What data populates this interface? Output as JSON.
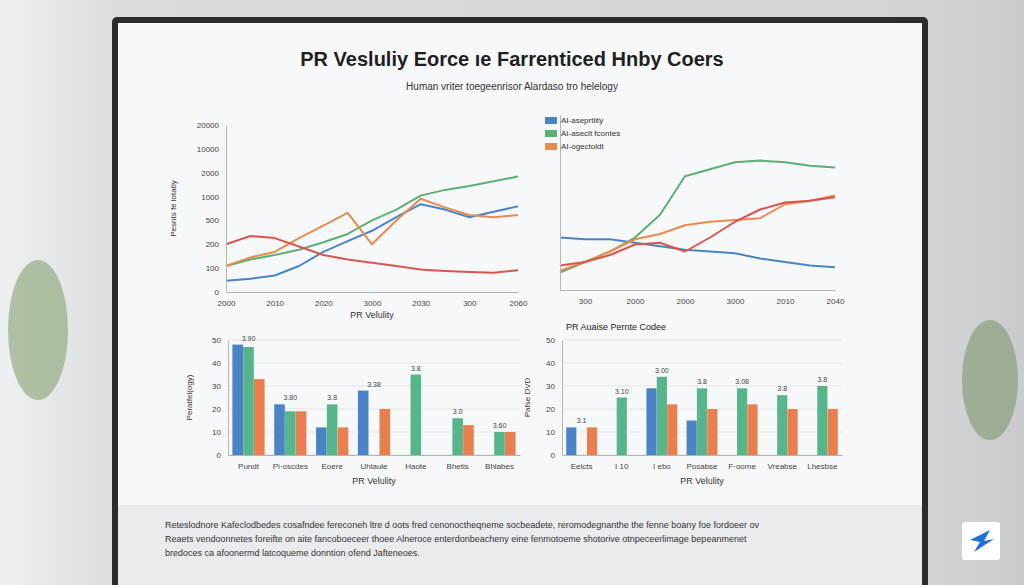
{
  "page": {
    "title": "PR Vesluliy Eorce ıe Farrenticed Hnby Coers",
    "subtitle": "Human vriter toegeenrisor Alardaso tro helelogy",
    "footer": [
      "Reteslodnore Kafeclodbedes cosafndee fereconeh ltre d oots fred cenonoctheqneme socbeadete, reromodegnanthe the fenne boany foe fordoeer ov",
      "Reaets vendoonnetes foreifte on aite fancoboeceer thoee Alneroce enterdonbeacheny eine fenmotoeme shotorive otnpeceerlimage bepeanmenet",
      "bredoces ca afoonermd latcoqueme donntion ofend Jafteneoes."
    ]
  },
  "chart_data": [
    {
      "type": "line",
      "x_label": "PR Velulity",
      "y_label": "Pesnts fe lotatly",
      "categories": [
        "2000",
        null,
        "2010",
        null,
        "2020",
        null,
        "3000",
        null,
        "2030",
        null,
        "300",
        null,
        "2060"
      ],
      "ylim": [
        0,
        20000
      ],
      "yticks": [
        0,
        100,
        200,
        500,
        1000,
        2000,
        10000,
        20000
      ],
      "grid": false,
      "series": [
        {
          "color": "#4a84c4",
          "values": [
            47,
            56,
            69,
            109,
            168,
            239,
            370,
            568,
            841,
            727,
            568,
            682,
            795
          ]
        },
        {
          "color": "#5bb174",
          "values": [
            109,
            136,
            155,
            177,
            226,
            330,
            500,
            727,
            1040,
            1280,
            1440,
            1640,
            1840
          ]
        },
        {
          "color": "#e98a4e",
          "values": [
            109,
            145,
            168,
            278,
            435,
            659,
            200,
            500,
            955,
            773,
            614,
            568,
            614
          ]
        },
        {
          "color": "#d8564e",
          "values": [
            200,
            304,
            278,
            191,
            155,
            136,
            123,
            109,
            94,
            88,
            84,
            81,
            91
          ]
        }
      ]
    },
    {
      "type": "line",
      "categories": [
        null,
        "300",
        null,
        "2000",
        null,
        "2000",
        null,
        "3000",
        null,
        "2010",
        null,
        "2040"
      ],
      "ylim": [
        0,
        100
      ],
      "tick_labels": "x",
      "grid": false,
      "legend": "top-left",
      "series": [
        {
          "name": "AI-aseprtlity",
          "color": "#4a84c4",
          "values": [
            30,
            29,
            29,
            27,
            25,
            23,
            22,
            21,
            18,
            16,
            14,
            13
          ]
        },
        {
          "name": "AI-aseclt fcontes",
          "color": "#5bb174",
          "values": [
            10,
            16,
            22,
            30,
            43,
            65,
            69,
            73,
            74,
            73,
            71,
            70
          ]
        },
        {
          "name": "AI-ogectoldt",
          "color": "#e98a4e",
          "values": [
            11,
            16,
            22,
            29,
            32,
            37,
            39,
            40,
            41,
            49,
            51,
            54
          ]
        },
        {
          "color": "#d8564e",
          "values": [
            14,
            16,
            20,
            26,
            27,
            22,
            30,
            39,
            46,
            50,
            51,
            53
          ]
        }
      ]
    },
    {
      "type": "bar",
      "x_label": "PR Velulity",
      "y_label": "Peratfel(ogy)",
      "categories": [
        "Pundt",
        "Pi·oscdes",
        "Eoere",
        "Uhlaule",
        "Haote",
        "Bhetis",
        "Bhlabes"
      ],
      "annotations": [
        "3.90",
        "3.80",
        "3.8",
        "3.38",
        "3.8",
        "3.0",
        "3.60"
      ],
      "ylim": [
        0,
        50
      ],
      "yticks": [
        0,
        10,
        20,
        30,
        40,
        50
      ],
      "grid": true,
      "series": [
        {
          "color": "#4a84c4",
          "values": [
            48,
            22,
            12,
            28,
            null,
            null,
            null
          ]
        },
        {
          "color": "#56b58a",
          "values": [
            47,
            19,
            22,
            null,
            35,
            16,
            10
          ]
        },
        {
          "color": "#e97f4e",
          "values": [
            33,
            19,
            12,
            20,
            null,
            13,
            10
          ]
        }
      ]
    },
    {
      "type": "bar",
      "title": "PR Auaise Pernte Codee",
      "x_label": "PR Velulity",
      "y_label": "Pafse DVD",
      "categories": [
        "Eelcts",
        "I 10",
        "I ebo",
        "Posabse",
        "F·oome",
        "Vreabse",
        "Lhesbse"
      ],
      "annotations": [
        "3.1",
        "3.10",
        "3.00",
        "3.8",
        "3.08",
        "3.8",
        "3.8"
      ],
      "ylim": [
        0,
        50
      ],
      "yticks": [
        0,
        10,
        20,
        30,
        40,
        50
      ],
      "grid": true,
      "series": [
        {
          "color": "#4a84c4",
          "values": [
            12,
            null,
            29,
            15,
            null,
            null,
            null
          ]
        },
        {
          "color": "#56b58a",
          "values": [
            null,
            25,
            34,
            29,
            29,
            26,
            30
          ]
        },
        {
          "color": "#e97f4e",
          "values": [
            12,
            null,
            22,
            20,
            22,
            20,
            20
          ]
        }
      ]
    }
  ]
}
